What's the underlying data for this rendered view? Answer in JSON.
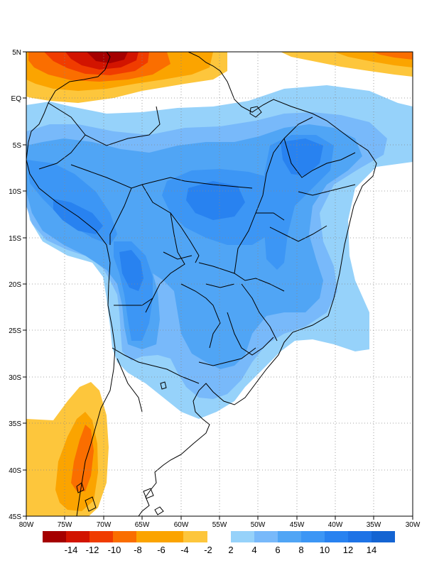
{
  "map": {
    "region": "South America",
    "projection": "cylindrical equidistant",
    "lon_range": [
      -80,
      -30
    ],
    "lat_range": [
      -45,
      5
    ],
    "x_ticks": [
      "80W",
      "75W",
      "70W",
      "65W",
      "60W",
      "55W",
      "50W",
      "45W",
      "40W",
      "35W",
      "30W"
    ],
    "y_ticks": [
      "5N",
      "EQ",
      "5S",
      "10S",
      "15S",
      "20S",
      "25S",
      "30S",
      "35S",
      "40S",
      "45S"
    ],
    "colors": {
      "neg": [
        "#a50000",
        "#d21400",
        "#f03c00",
        "#fa6e00",
        "#fba400",
        "#fdc63c"
      ],
      "pos": [
        "#96d2fa",
        "#78b9fa",
        "#50a5f5",
        "#3c96f5",
        "#2882f0",
        "#1464d2"
      ]
    }
  },
  "colorbar": {
    "neg_labels": [
      "-14",
      "-12",
      "-10",
      "-8",
      "-6",
      "-4",
      "-2"
    ],
    "pos_labels": [
      "2",
      "4",
      "6",
      "8",
      "10",
      "12",
      "14"
    ]
  }
}
